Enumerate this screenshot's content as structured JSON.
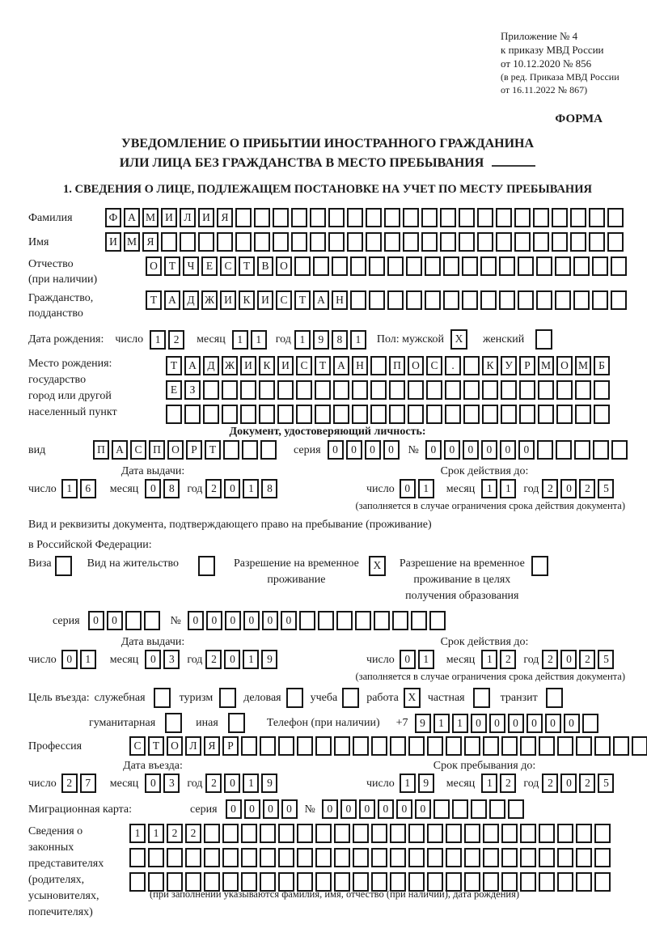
{
  "header": {
    "ref_lines": [
      "Приложение № 4",
      "к приказу МВД России",
      "от 10.12.2020 № 856"
    ],
    "ref_small_lines": [
      "(в ред. Приказа МВД России",
      "от 16.11.2022 № 867)"
    ],
    "form_label": "ФОРМА"
  },
  "title": {
    "line1": "УВЕДОМЛЕНИЕ О ПРИБЫТИИ ИНОСТРАННОГО ГРАЖДАНИНА",
    "line2": "ИЛИ ЛИЦА БЕЗ ГРАЖДАНСТВА В МЕСТО ПРЕБЫВАНИЯ"
  },
  "section1": {
    "heading": "1. СВЕДЕНИЯ О ЛИЦЕ, ПОДЛЕЖАЩЕМ ПОСТАНОВКЕ НА УЧЕТ ПО МЕСТУ ПРЕБЫВАНИЯ"
  },
  "labels": {
    "day": "число",
    "month": "месяц",
    "year": "год",
    "series": "серия",
    "number": "№"
  },
  "fields": {
    "surname": {
      "label": "Фамилия",
      "value": "ФАМИЛИЯ",
      "cells": 28
    },
    "first_name": {
      "label": "Имя",
      "value": "ИМЯ",
      "cells": 28
    },
    "patronymic": {
      "label": "Отчество",
      "label2": "(при наличии)",
      "value": "ОТЧЕСТВО",
      "cells": 26
    },
    "citizenship": {
      "label": "Гражданство,",
      "label2": "подданство",
      "value": "ТАДЖИКИСТАН",
      "cells": 26
    },
    "birth_date": {
      "label": "Дата рождения:",
      "day": "12",
      "month": "11",
      "year": "1981"
    },
    "gender": {
      "male_label": "Пол: мужской",
      "male": "X",
      "female_label": "женский",
      "female": ""
    },
    "birth_place": {
      "labels": [
        "Место рождения:",
        "государство",
        "город или другой",
        "населенный пункт"
      ],
      "row1": {
        "value": "ТАДЖИКИСТАН ПОС. КУРМОМБ",
        "cells": 24
      },
      "row2": {
        "value": "ЕЗ",
        "cells": 24
      },
      "row3": {
        "value": "",
        "cells": 24
      }
    },
    "identity_doc": {
      "heading": "Документ, удостоверяющий личность:",
      "kind_label": "вид",
      "kind": {
        "value": "ПАСПОРТ",
        "cells": 10
      },
      "series": {
        "value": "0000",
        "cells": 4
      },
      "number": {
        "value": "000000",
        "cells": 11
      },
      "issue": {
        "heading": "Дата выдачи:",
        "day": "16",
        "month": "08",
        "year": "2018"
      },
      "valid": {
        "heading": "Срок действия до:",
        "day": "01",
        "month": "11",
        "year": "2025"
      },
      "valid_note": "(заполняется в случае ограничения срока действия документа)"
    },
    "residence_doc": {
      "intro1": "Вид и реквизиты документа, подтверждающего право на пребывание (проживание)",
      "intro2": "в Российской Федерации:",
      "options": [
        {
          "lines": [
            "Виза"
          ],
          "checked": ""
        },
        {
          "lines": [
            "Вид на жительство"
          ],
          "checked": ""
        },
        {
          "lines": [
            "Разрешение на временное",
            "проживание"
          ],
          "checked": "X"
        },
        {
          "lines": [
            "Разрешение на временное",
            "проживание в целях",
            "получения образования"
          ],
          "checked": ""
        }
      ],
      "series": {
        "value": "00",
        "cells": 4
      },
      "number": {
        "value": "000000",
        "cells": 14
      },
      "issue": {
        "heading": "Дата выдачи:",
        "day": "01",
        "month": "03",
        "year": "2019"
      },
      "valid": {
        "heading": "Срок действия до:",
        "day": "01",
        "month": "12",
        "year": "2025"
      },
      "valid_note": "(заполняется в случае ограничения срока действия документа)"
    },
    "purpose": {
      "intro": "Цель въезда:",
      "options": [
        {
          "label": "служебная",
          "checked": ""
        },
        {
          "label": "туризм",
          "checked": ""
        },
        {
          "label": "деловая",
          "checked": ""
        },
        {
          "label": "учеба",
          "checked": ""
        },
        {
          "label": "работа",
          "checked": "X"
        },
        {
          "label": "частная",
          "checked": ""
        },
        {
          "label": "транзит",
          "checked": ""
        },
        {
          "label": "гуманитарная",
          "checked": ""
        },
        {
          "label": "иная",
          "checked": ""
        }
      ]
    },
    "phone": {
      "label": "Телефон (при наличии)",
      "prefix": "+7",
      "value": "911000000",
      "cells": 10
    },
    "profession": {
      "label": "Профессия",
      "value": "СТОЛЯР",
      "cells": 28
    },
    "entry": {
      "date": {
        "heading": "Дата въезда:",
        "day": "27",
        "month": "03",
        "year": "2019"
      },
      "until": {
        "heading": "Срок пребывания до:",
        "day": "19",
        "month": "12",
        "year": "2025"
      }
    },
    "migration_card": {
      "label": "Миграционная карта:",
      "series": {
        "value": "0000",
        "cells": 4
      },
      "number": {
        "value": "000000",
        "cells": 11
      }
    },
    "representatives": {
      "labels": [
        "Сведения о",
        "законных",
        "представителях",
        "(родителях,",
        "усыновителях,",
        "попечителях)"
      ],
      "row1": {
        "value": "1122",
        "cells": 26
      },
      "row2": {
        "value": "",
        "cells": 26
      },
      "row3": {
        "value": "",
        "cells": 26
      },
      "note": "(при заполнении указываются фамилия, имя, отчество (при наличии), дата рождения)"
    }
  }
}
